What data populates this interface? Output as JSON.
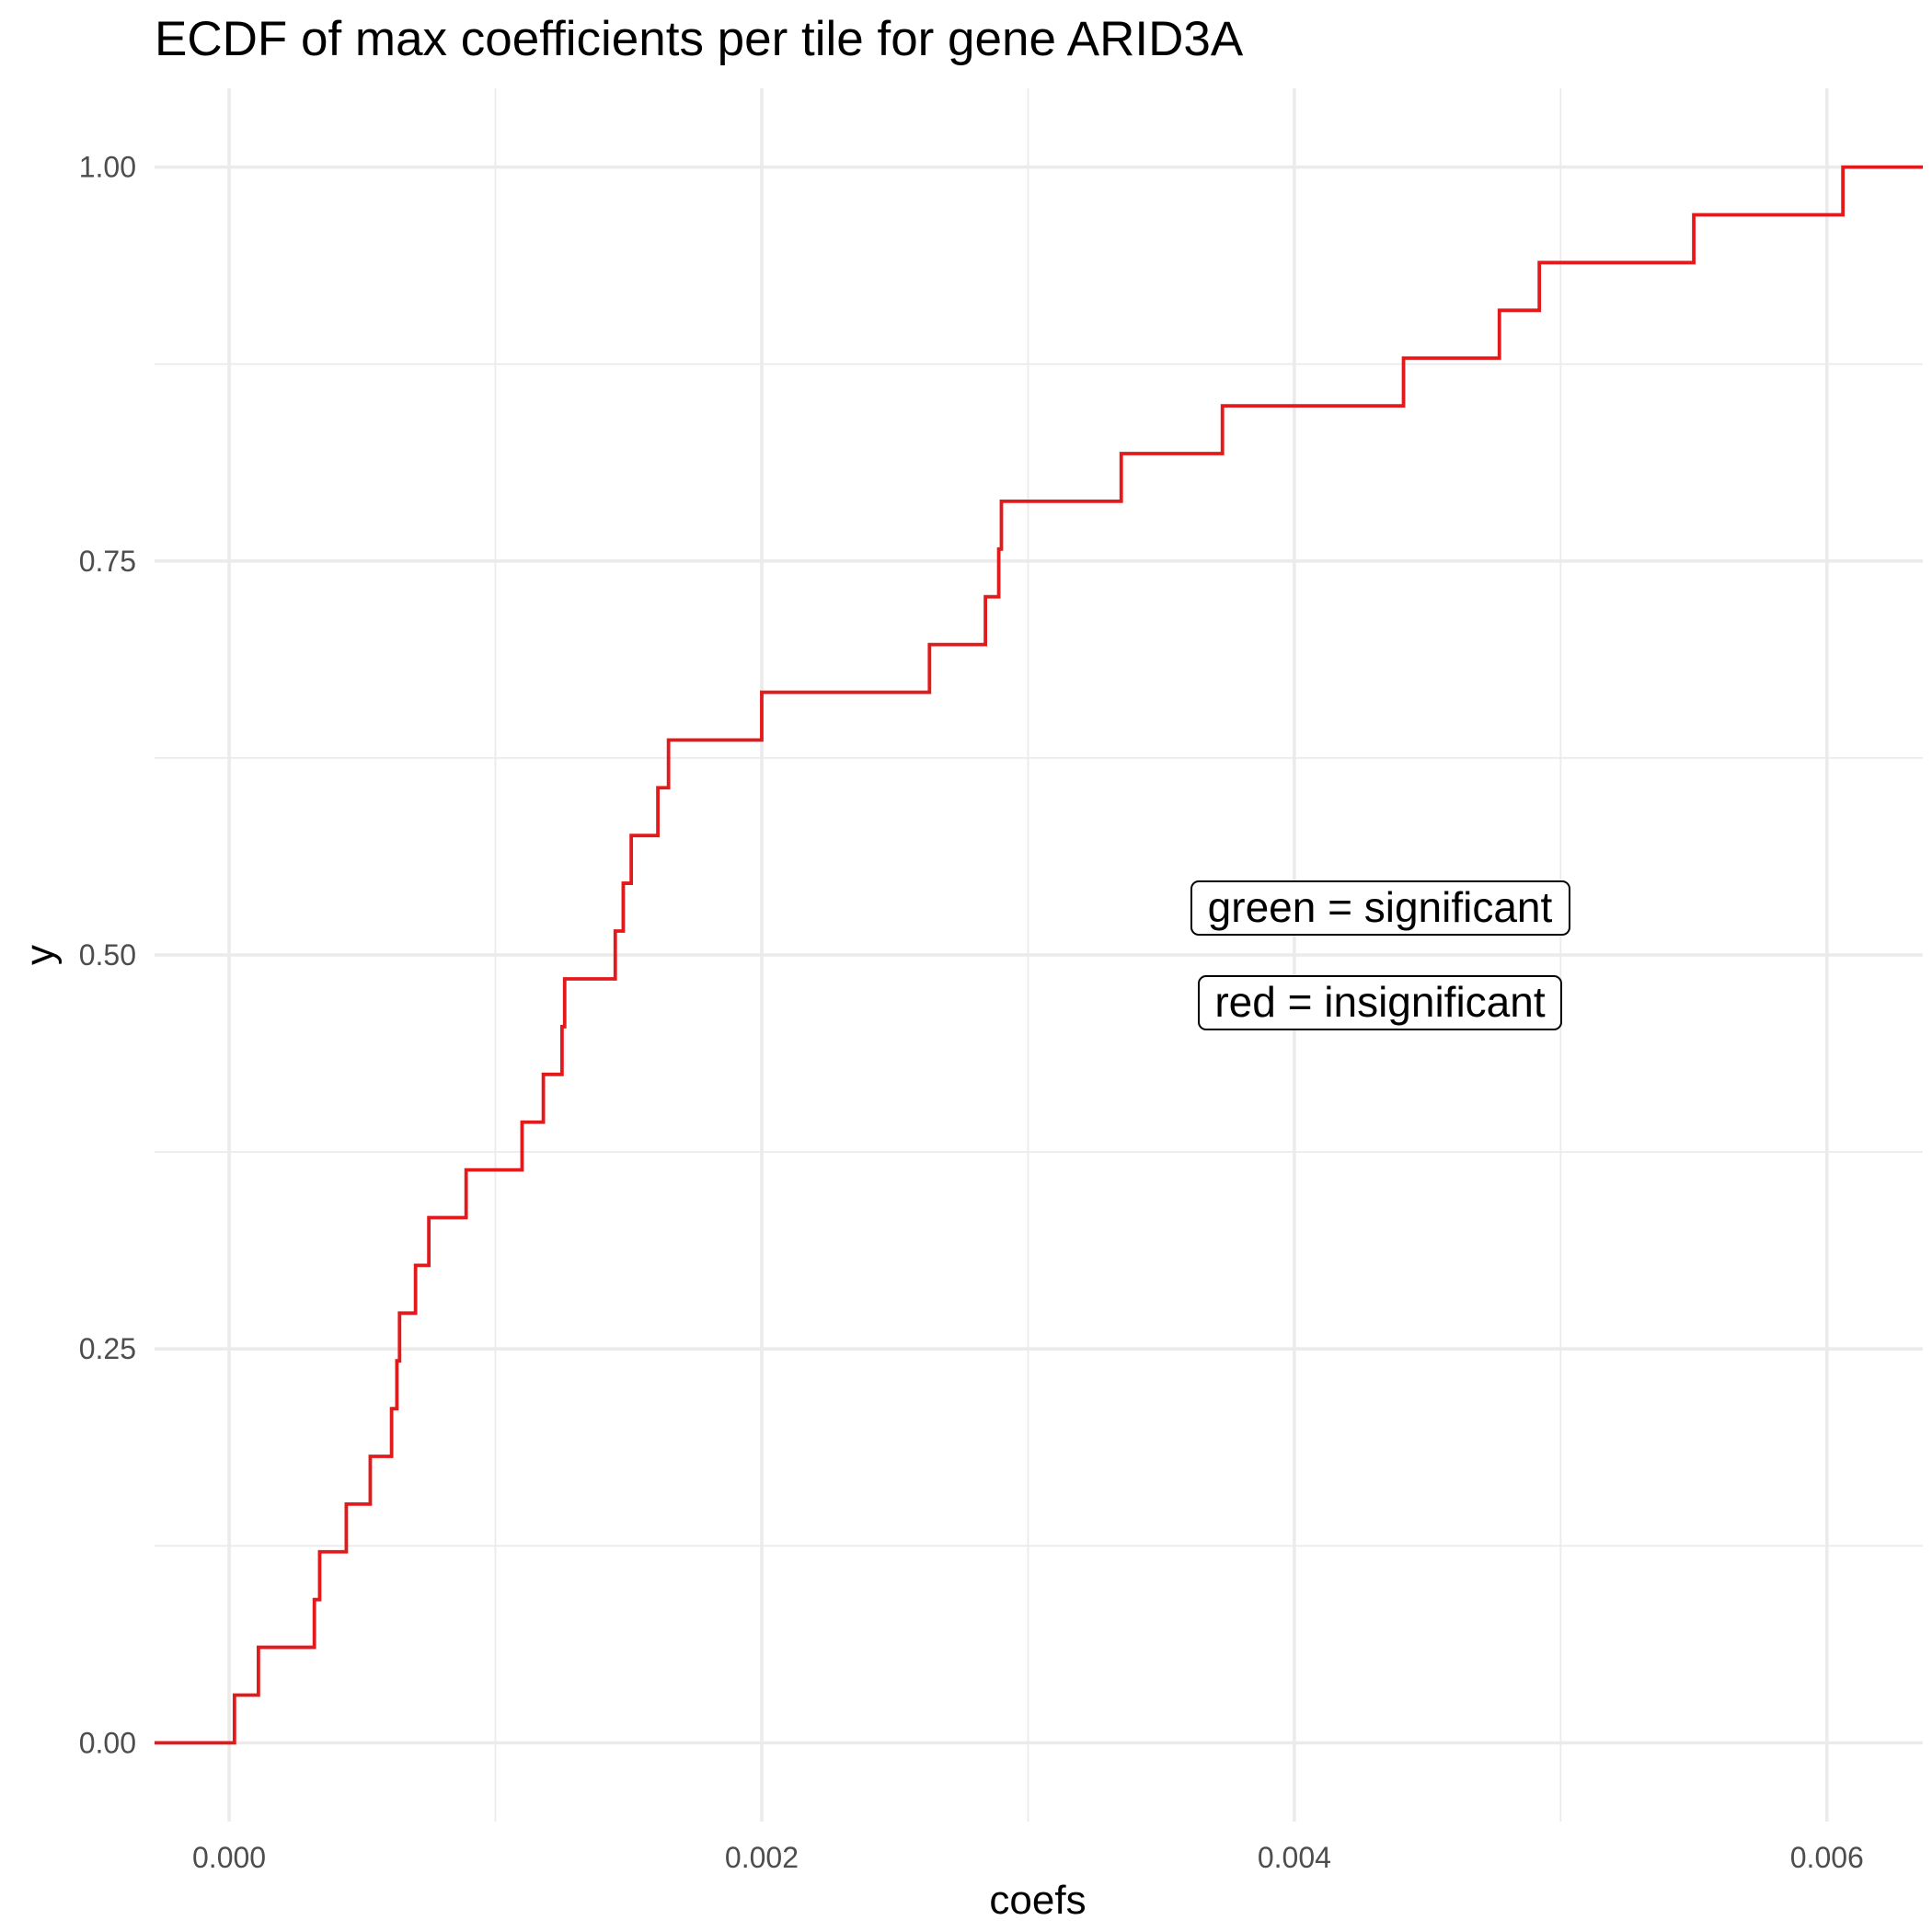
{
  "chart_data": {
    "type": "line",
    "subtype": "ecdf-step",
    "title": "ECDF of max coefficients per tile for gene ARID3A",
    "xlabel": "coefs",
    "ylabel": "y",
    "xlim": [
      -0.00028,
      0.00636
    ],
    "ylim": [
      -0.05,
      1.05
    ],
    "x_ticks": [
      0.0,
      0.002,
      0.004,
      0.006
    ],
    "x_tick_labels": [
      "0.000",
      "0.002",
      "0.004",
      "0.006"
    ],
    "y_ticks": [
      0.0,
      0.25,
      0.5,
      0.75,
      1.0
    ],
    "y_tick_labels": [
      "0.00",
      "0.25",
      "0.50",
      "0.75",
      "1.00"
    ],
    "grid": true,
    "series": [
      {
        "color": "#e31a1c",
        "x": [
          2e-05,
          0.00011,
          0.00032,
          0.00034,
          0.00044,
          0.00053,
          0.00061,
          0.00063,
          0.00064,
          0.0007,
          0.00075,
          0.00089,
          0.0011,
          0.00118,
          0.00125,
          0.00126,
          0.00145,
          0.00148,
          0.00151,
          0.00161,
          0.00165,
          0.002,
          0.00263,
          0.00284,
          0.00289,
          0.0029,
          0.00335,
          0.00373,
          0.00441,
          0.00477,
          0.00492,
          0.0055,
          0.00606
        ],
        "y": [
          0.0303,
          0.0606,
          0.0909,
          0.1212,
          0.1515,
          0.1818,
          0.2121,
          0.2424,
          0.2727,
          0.303,
          0.3333,
          0.3636,
          0.3939,
          0.4242,
          0.4545,
          0.4848,
          0.5152,
          0.5455,
          0.5758,
          0.6061,
          0.6364,
          0.6667,
          0.697,
          0.7273,
          0.7576,
          0.7879,
          0.8182,
          0.8485,
          0.8788,
          0.9091,
          0.9394,
          0.9697,
          1.0
        ]
      }
    ],
    "annotations": [
      "green = significant",
      "red = insignificant"
    ]
  }
}
